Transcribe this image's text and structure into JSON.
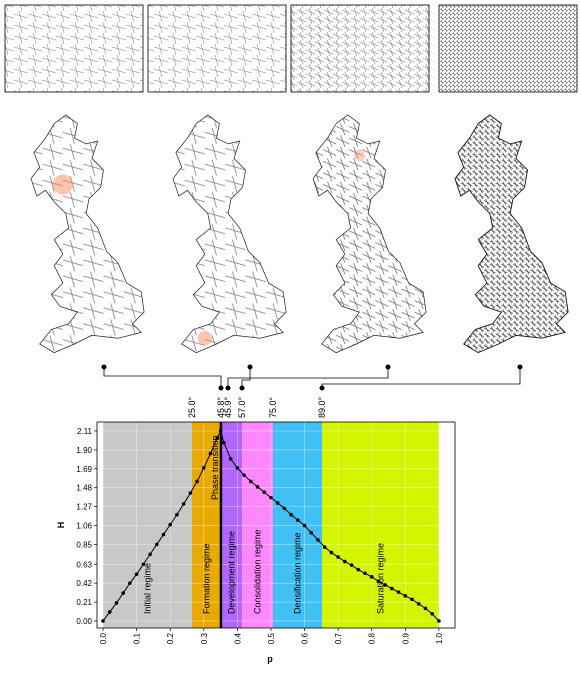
{
  "chart_data": {
    "type": "line",
    "xlabel": "p",
    "ylabel": "H",
    "color": "#000000",
    "grid": true,
    "xlim": [
      -0.018,
      1.048
    ],
    "ylim": [
      -0.078,
      2.21
    ],
    "xticks": [
      {
        "value": 0,
        "label": "0.0"
      },
      0.1,
      0.2,
      0.3,
      0.4,
      0.5,
      0.6,
      0.7,
      0.8,
      0.9,
      {
        "value": 1,
        "label": "1.0"
      }
    ],
    "yticks": [
      {
        "value": 0,
        "label": "0.00"
      },
      0.21,
      0.42,
      0.63,
      0.85,
      1.06,
      1.27,
      1.48,
      1.69,
      {
        "value": 1.9,
        "label": "1.90"
      },
      2.11
    ],
    "regions": [
      {
        "label": "Initial regime",
        "start": 0,
        "end": 0.265,
        "color": "#c8c8c8"
      },
      {
        "label": "Formation regime",
        "start": 0.265,
        "end": 0.351,
        "color": "#e8aa00"
      },
      {
        "label": "Development regime",
        "start": 0.351,
        "end": 0.414,
        "color": "#b066ff"
      },
      {
        "label": "Consolidation regime",
        "start": 0.414,
        "end": 0.506,
        "color": "#ff88ff"
      },
      {
        "label": "Densification regime",
        "start": 0.506,
        "end": 0.652,
        "color": "#40c0f4"
      },
      {
        "label": "Saturation regime",
        "start": 0.652,
        "end": 1.0,
        "color": "#d4f500"
      }
    ],
    "phase_transition": {
      "label": "Phase transition",
      "value": 0.351
    },
    "thresholds": [
      {
        "label": "25.0°",
        "value": 0.265
      },
      {
        "label": "45.8°",
        "value": 0.351
      },
      {
        "label": "45.9°",
        "value": 0.372
      },
      {
        "label": "57.0°",
        "value": 0.414
      },
      {
        "label": "75.0°",
        "value": 0.506
      },
      {
        "label": "89.0°",
        "value": 0.652
      }
    ],
    "x": [
      0,
      0.02,
      0.04,
      0.06,
      0.08,
      0.1,
      0.12,
      0.14,
      0.16,
      0.18,
      0.2,
      0.22,
      0.24,
      0.26,
      0.28,
      0.3,
      0.32,
      0.34,
      0.35,
      0.36,
      0.38,
      0.4,
      0.42,
      0.44,
      0.46,
      0.48,
      0.5,
      0.52,
      0.54,
      0.56,
      0.58,
      0.6,
      0.62,
      0.64,
      0.66,
      0.68,
      0.7,
      0.72,
      0.74,
      0.76,
      0.78,
      0.8,
      0.82,
      0.84,
      0.86,
      0.88,
      0.9,
      0.92,
      0.94,
      0.96,
      0.98,
      1.0
    ],
    "values": [
      0,
      0.1,
      0.2,
      0.31,
      0.42,
      0.52,
      0.63,
      0.74,
      0.85,
      0.96,
      1.07,
      1.18,
      1.3,
      1.42,
      1.55,
      1.7,
      1.86,
      2.03,
      2.11,
      1.98,
      1.8,
      1.7,
      1.62,
      1.55,
      1.49,
      1.43,
      1.37,
      1.31,
      1.25,
      1.18,
      1.12,
      1.06,
      0.98,
      0.9,
      0.82,
      0.76,
      0.71,
      0.66,
      0.62,
      0.57,
      0.53,
      0.49,
      0.44,
      0.4,
      0.36,
      0.32,
      0.28,
      0.24,
      0.19,
      0.14,
      0.08,
      0
    ]
  }
}
